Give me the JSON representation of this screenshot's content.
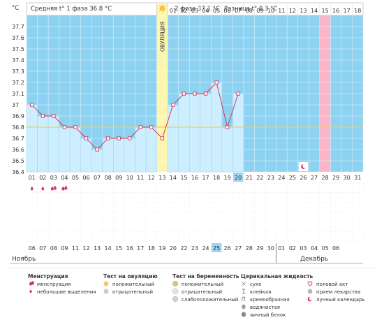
{
  "header": {
    "y_unit": "°C",
    "phase1_text": "Средняя t° 1 фаза 36.8 °C",
    "phase2_text": "2 фаза 37.1 °C",
    "difference_text": "Разница t° 0.3 °C"
  },
  "ovulation_label": "ОВУЛЯЦИЯ",
  "top_day_numbers": [
    "01",
    "02",
    "03",
    "04",
    "05",
    "06",
    "07",
    "08",
    "09",
    "10",
    "11",
    "12",
    "13",
    "14",
    "15",
    "16",
    "17",
    "18"
  ],
  "lunar_marker": {
    "day_index": 25,
    "icon": "moon-icon"
  },
  "month_labels": {
    "start": "Ноябрь",
    "end": "Декабрь"
  },
  "colors": {
    "plot_blue": "#8ed2f2",
    "below_fill": "#cdeeff",
    "ovulation_yellow": "#fcf6ae",
    "menstruation_pink": "#f9b6c9",
    "line": "#d6365c",
    "cover_line": "#eecf5a",
    "weekend_red": "#e5004b",
    "highlight": "#9dd5f2"
  },
  "chart_data": {
    "type": "line",
    "ylabel": "°C",
    "ylim": [
      36.4,
      37.8
    ],
    "yticks": [
      "36.4",
      "36.5",
      "36.6",
      "36.7",
      "36.8",
      "36.9",
      "37",
      "37.1",
      "37.2",
      "37.3",
      "37.4",
      "37.5",
      "37.6",
      "37.7"
    ],
    "cycle_days": [
      "01",
      "02",
      "03",
      "04",
      "05",
      "06",
      "07",
      "08",
      "09",
      "10",
      "11",
      "12",
      "13",
      "14",
      "15",
      "16",
      "17",
      "18",
      "19",
      "20",
      "21",
      "22",
      "23",
      "24",
      "25",
      "26",
      "27",
      "28",
      "29",
      "30",
      "31"
    ],
    "dates": [
      "06",
      "07",
      "08",
      "09",
      "11",
      "12",
      "13",
      "14",
      "15",
      "16",
      "17",
      "18",
      "19",
      "20",
      "22",
      "23",
      "24",
      "25",
      "26",
      "27",
      "28",
      "29",
      "30",
      "01",
      "02",
      "03",
      "04",
      "05",
      "06"
    ],
    "red_dates": [
      0,
      5,
      6,
      12,
      13,
      19,
      20,
      26,
      27
    ],
    "highlighted_cycle_day": 20,
    "highlighted_date": "25",
    "temperatures": [
      37.0,
      36.9,
      36.9,
      36.8,
      36.8,
      36.7,
      36.6,
      36.7,
      36.7,
      36.7,
      36.8,
      36.8,
      36.7,
      37.0,
      37.1,
      37.1,
      37.1,
      37.2,
      36.8,
      37.1
    ],
    "cover_line": 36.8,
    "ovulation_day": 13,
    "menstruation_day": 28,
    "menstruation_days": [
      3,
      4
    ],
    "small_discharge_days": [
      1,
      2
    ]
  },
  "legend": [
    {
      "title": "Менструация",
      "items": [
        {
          "icon": "menstruation-icon",
          "label": "менструация"
        },
        {
          "icon": "small-discharge-icon",
          "label": "небольшие выделения"
        }
      ]
    },
    {
      "title": "Тест на овуляцию",
      "items": [
        {
          "icon": "sun-positive-icon",
          "label": "положительный"
        },
        {
          "icon": "sun-negative-icon",
          "label": "отрицательный"
        }
      ]
    },
    {
      "title": "Тест на беременность",
      "items": [
        {
          "icon": "test-positive-icon",
          "label": "положительный"
        },
        {
          "icon": "test-negative-icon",
          "label": "отрицательный"
        },
        {
          "icon": "test-weak-icon",
          "label": "слабоположительный"
        }
      ]
    },
    {
      "title": "Церикальная жидкость",
      "items": [
        {
          "icon": "dry-icon",
          "label": "сухо"
        },
        {
          "icon": "sticky-icon",
          "label": "клейкая"
        },
        {
          "icon": "creamy-icon",
          "label": "кремообразная"
        },
        {
          "icon": "watery-icon",
          "label": "водянистая"
        },
        {
          "icon": "egg-white-icon",
          "label": "яичный белок"
        }
      ]
    },
    {
      "title": "",
      "items": [
        {
          "icon": "heart-icon",
          "label": "половой акт"
        },
        {
          "icon": "pill-icon",
          "label": "прием лекарства"
        },
        {
          "icon": "moon-icon",
          "label": "лунный календарь"
        }
      ]
    }
  ]
}
